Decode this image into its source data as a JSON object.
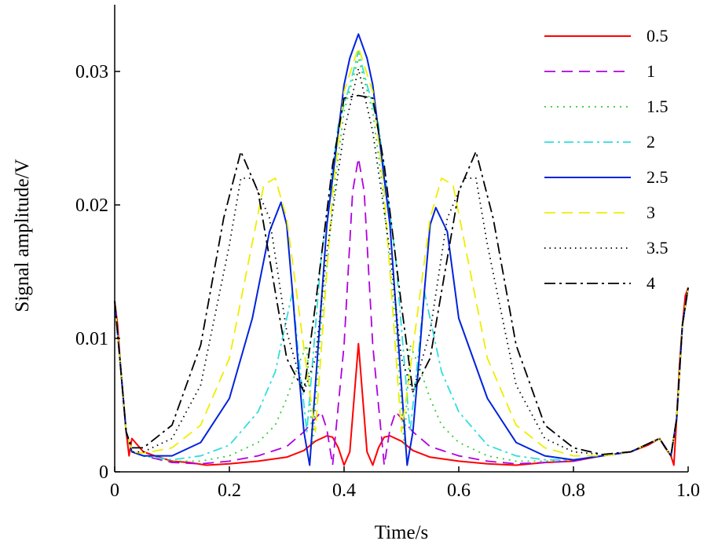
{
  "chart_data": {
    "type": "line",
    "title": "",
    "xlabel": "Time/s",
    "ylabel": "Signal amplitude/V",
    "xlim": [
      0,
      1.0
    ],
    "ylim": [
      0,
      0.035
    ],
    "xticks": [
      0,
      0.2,
      0.4,
      0.6,
      0.8,
      1.0
    ],
    "xtick_labels": [
      "0",
      "0.2",
      "0.4",
      "0.6",
      "0.8",
      "1.0"
    ],
    "yticks": [
      0,
      0.01,
      0.02,
      0.03
    ],
    "ytick_labels": [
      "0",
      "0.01",
      "0.02",
      "0.03"
    ],
    "grid": false,
    "legend_position": "top-right",
    "series": [
      {
        "name": "0.5",
        "color": "#ff0000",
        "dash": "solid",
        "x": [
          0,
          0.005,
          0.01,
          0.015,
          0.02,
          0.025,
          0.03,
          0.04,
          0.05,
          0.07,
          0.1,
          0.13,
          0.16,
          0.2,
          0.25,
          0.3,
          0.33,
          0.35,
          0.37,
          0.38,
          0.39,
          0.4,
          0.41,
          0.425,
          0.44,
          0.45,
          0.46,
          0.47,
          0.48,
          0.5,
          0.52,
          0.55,
          0.6,
          0.65,
          0.7,
          0.75,
          0.8,
          0.85,
          0.9,
          0.93,
          0.95,
          0.96,
          0.97,
          0.975,
          0.98,
          0.985,
          0.99,
          0.995,
          1.0
        ],
        "y": [
          0.0128,
          0.011,
          0.008,
          0.0055,
          0.003,
          0.0012,
          0.0025,
          0.002,
          0.0015,
          0.0012,
          0.0008,
          0.0007,
          0.0005,
          0.0006,
          0.0008,
          0.0011,
          0.0016,
          0.0023,
          0.0027,
          0.0026,
          0.0018,
          0.0005,
          0.0015,
          0.0096,
          0.0015,
          0.0005,
          0.0018,
          0.0026,
          0.0027,
          0.0023,
          0.0016,
          0.0011,
          0.0008,
          0.0006,
          0.0005,
          0.0007,
          0.0008,
          0.0012,
          0.0015,
          0.002,
          0.0025,
          0.0018,
          0.0012,
          0.0005,
          0.004,
          0.008,
          0.011,
          0.0132,
          0.0138
        ]
      },
      {
        "name": "1",
        "color": "#b000e0",
        "dash": "dash",
        "x": [
          0,
          0.01,
          0.02,
          0.03,
          0.05,
          0.1,
          0.15,
          0.2,
          0.25,
          0.3,
          0.33,
          0.36,
          0.37,
          0.38,
          0.4,
          0.415,
          0.425,
          0.435,
          0.45,
          0.47,
          0.48,
          0.49,
          0.52,
          0.55,
          0.6,
          0.65,
          0.7,
          0.75,
          0.8,
          0.85,
          0.9,
          0.95,
          0.97,
          0.98,
          0.99,
          1.0
        ],
        "y": [
          0.0128,
          0.008,
          0.003,
          0.0015,
          0.0012,
          0.0007,
          0.0006,
          0.0008,
          0.0012,
          0.0019,
          0.003,
          0.0045,
          0.0032,
          0.0005,
          0.0095,
          0.021,
          0.0235,
          0.021,
          0.0095,
          0.0005,
          0.0032,
          0.0045,
          0.003,
          0.0019,
          0.0012,
          0.0008,
          0.0006,
          0.0007,
          0.0008,
          0.0012,
          0.0015,
          0.0025,
          0.0012,
          0.004,
          0.011,
          0.0138
        ]
      },
      {
        "name": "1.5",
        "color": "#33cc33",
        "dash": "dot",
        "x": [
          0,
          0.01,
          0.02,
          0.03,
          0.05,
          0.1,
          0.15,
          0.2,
          0.25,
          0.28,
          0.3,
          0.32,
          0.335,
          0.345,
          0.36,
          0.385,
          0.4,
          0.425,
          0.45,
          0.465,
          0.49,
          0.505,
          0.515,
          0.53,
          0.55,
          0.57,
          0.6,
          0.65,
          0.7,
          0.75,
          0.8,
          0.85,
          0.9,
          0.95,
          0.97,
          0.98,
          0.99,
          1.0
        ],
        "y": [
          0.0128,
          0.008,
          0.003,
          0.0015,
          0.0012,
          0.0008,
          0.0008,
          0.0012,
          0.0022,
          0.0035,
          0.0055,
          0.008,
          0.0095,
          0.002,
          0.011,
          0.022,
          0.027,
          0.031,
          0.027,
          0.022,
          0.011,
          0.002,
          0.0095,
          0.008,
          0.0055,
          0.0035,
          0.0022,
          0.0012,
          0.0008,
          0.0008,
          0.0009,
          0.0012,
          0.0015,
          0.0025,
          0.0012,
          0.004,
          0.011,
          0.0138
        ]
      },
      {
        "name": "2",
        "color": "#33dddd",
        "dash": "dashdot",
        "x": [
          0,
          0.01,
          0.02,
          0.03,
          0.05,
          0.1,
          0.15,
          0.2,
          0.25,
          0.28,
          0.3,
          0.31,
          0.32,
          0.335,
          0.36,
          0.39,
          0.41,
          0.425,
          0.44,
          0.46,
          0.49,
          0.515,
          0.53,
          0.54,
          0.55,
          0.57,
          0.6,
          0.65,
          0.7,
          0.75,
          0.8,
          0.85,
          0.9,
          0.95,
          0.97,
          0.98,
          0.99,
          1.0
        ],
        "y": [
          0.0128,
          0.008,
          0.003,
          0.0015,
          0.0012,
          0.0009,
          0.0012,
          0.002,
          0.0045,
          0.0075,
          0.0115,
          0.0135,
          0.009,
          0.003,
          0.016,
          0.026,
          0.029,
          0.0315,
          0.029,
          0.026,
          0.016,
          0.003,
          0.009,
          0.0135,
          0.0115,
          0.0075,
          0.0045,
          0.002,
          0.0012,
          0.0009,
          0.0009,
          0.0012,
          0.0015,
          0.0025,
          0.0012,
          0.004,
          0.011,
          0.0138
        ]
      },
      {
        "name": "2.5",
        "color": "#0022dd",
        "dash": "solid",
        "x": [
          0,
          0.01,
          0.02,
          0.03,
          0.05,
          0.1,
          0.15,
          0.2,
          0.24,
          0.27,
          0.29,
          0.3,
          0.31,
          0.32,
          0.33,
          0.34,
          0.35,
          0.37,
          0.4,
          0.41,
          0.425,
          0.44,
          0.45,
          0.48,
          0.5,
          0.51,
          0.52,
          0.53,
          0.54,
          0.55,
          0.56,
          0.58,
          0.6,
          0.65,
          0.7,
          0.75,
          0.8,
          0.85,
          0.9,
          0.95,
          0.97,
          0.98,
          0.99,
          1.0
        ],
        "y": [
          0.0128,
          0.008,
          0.003,
          0.0015,
          0.0012,
          0.0012,
          0.0022,
          0.0055,
          0.0115,
          0.018,
          0.0202,
          0.0185,
          0.0135,
          0.008,
          0.003,
          0.0005,
          0.0065,
          0.0185,
          0.029,
          0.031,
          0.0328,
          0.031,
          0.029,
          0.0185,
          0.0065,
          0.0005,
          0.003,
          0.008,
          0.0135,
          0.0185,
          0.0198,
          0.018,
          0.0115,
          0.0055,
          0.0022,
          0.0012,
          0.0009,
          0.0012,
          0.0015,
          0.0025,
          0.0012,
          0.004,
          0.011,
          0.0138
        ]
      },
      {
        "name": "3",
        "color": "#eeee00",
        "dash": "dash",
        "x": [
          0,
          0.01,
          0.02,
          0.03,
          0.05,
          0.1,
          0.15,
          0.2,
          0.23,
          0.26,
          0.28,
          0.3,
          0.32,
          0.34,
          0.35,
          0.36,
          0.38,
          0.4,
          0.425,
          0.45,
          0.47,
          0.49,
          0.5,
          0.51,
          0.53,
          0.55,
          0.57,
          0.59,
          0.62,
          0.65,
          0.7,
          0.75,
          0.8,
          0.85,
          0.9,
          0.95,
          0.97,
          0.98,
          0.99,
          1.0
        ],
        "y": [
          0.0128,
          0.008,
          0.003,
          0.0015,
          0.0014,
          0.0018,
          0.0035,
          0.0085,
          0.015,
          0.0215,
          0.022,
          0.019,
          0.0125,
          0.006,
          0.003,
          0.009,
          0.021,
          0.0285,
          0.0318,
          0.0285,
          0.021,
          0.009,
          0.003,
          0.006,
          0.0125,
          0.019,
          0.022,
          0.0215,
          0.015,
          0.0085,
          0.0035,
          0.0018,
          0.0012,
          0.0012,
          0.0015,
          0.0025,
          0.0012,
          0.004,
          0.011,
          0.0138
        ]
      },
      {
        "name": "3.5",
        "color": "#000000",
        "dash": "dotfine",
        "x": [
          0,
          0.01,
          0.02,
          0.03,
          0.05,
          0.1,
          0.15,
          0.2,
          0.22,
          0.24,
          0.27,
          0.3,
          0.33,
          0.35,
          0.37,
          0.4,
          0.425,
          0.45,
          0.48,
          0.5,
          0.52,
          0.55,
          0.58,
          0.61,
          0.63,
          0.65,
          0.7,
          0.75,
          0.8,
          0.85,
          0.9,
          0.95,
          0.97,
          0.98,
          0.99,
          1.0
        ],
        "y": [
          0.0128,
          0.008,
          0.003,
          0.0015,
          0.0015,
          0.0025,
          0.0065,
          0.017,
          0.022,
          0.022,
          0.019,
          0.0105,
          0.006,
          0.0085,
          0.0165,
          0.0255,
          0.0302,
          0.0255,
          0.0165,
          0.0085,
          0.006,
          0.0105,
          0.019,
          0.022,
          0.022,
          0.017,
          0.0065,
          0.0025,
          0.0015,
          0.0013,
          0.0015,
          0.0025,
          0.0012,
          0.004,
          0.011,
          0.0138
        ]
      },
      {
        "name": "4",
        "color": "#000000",
        "dash": "dashdotdash",
        "x": [
          0,
          0.01,
          0.02,
          0.03,
          0.05,
          0.1,
          0.15,
          0.19,
          0.22,
          0.25,
          0.28,
          0.3,
          0.33,
          0.35,
          0.38,
          0.4,
          0.425,
          0.45,
          0.47,
          0.5,
          0.52,
          0.55,
          0.57,
          0.6,
          0.63,
          0.66,
          0.7,
          0.75,
          0.8,
          0.85,
          0.9,
          0.95,
          0.97,
          0.98,
          0.99,
          1.0
        ],
        "y": [
          0.0128,
          0.008,
          0.003,
          0.0018,
          0.0018,
          0.0035,
          0.0095,
          0.019,
          0.024,
          0.021,
          0.0135,
          0.0085,
          0.006,
          0.0125,
          0.023,
          0.028,
          0.0282,
          0.028,
          0.023,
          0.0125,
          0.006,
          0.0085,
          0.0135,
          0.021,
          0.024,
          0.019,
          0.0095,
          0.0035,
          0.0018,
          0.0013,
          0.0015,
          0.0025,
          0.0012,
          0.004,
          0.011,
          0.0138
        ]
      }
    ]
  }
}
